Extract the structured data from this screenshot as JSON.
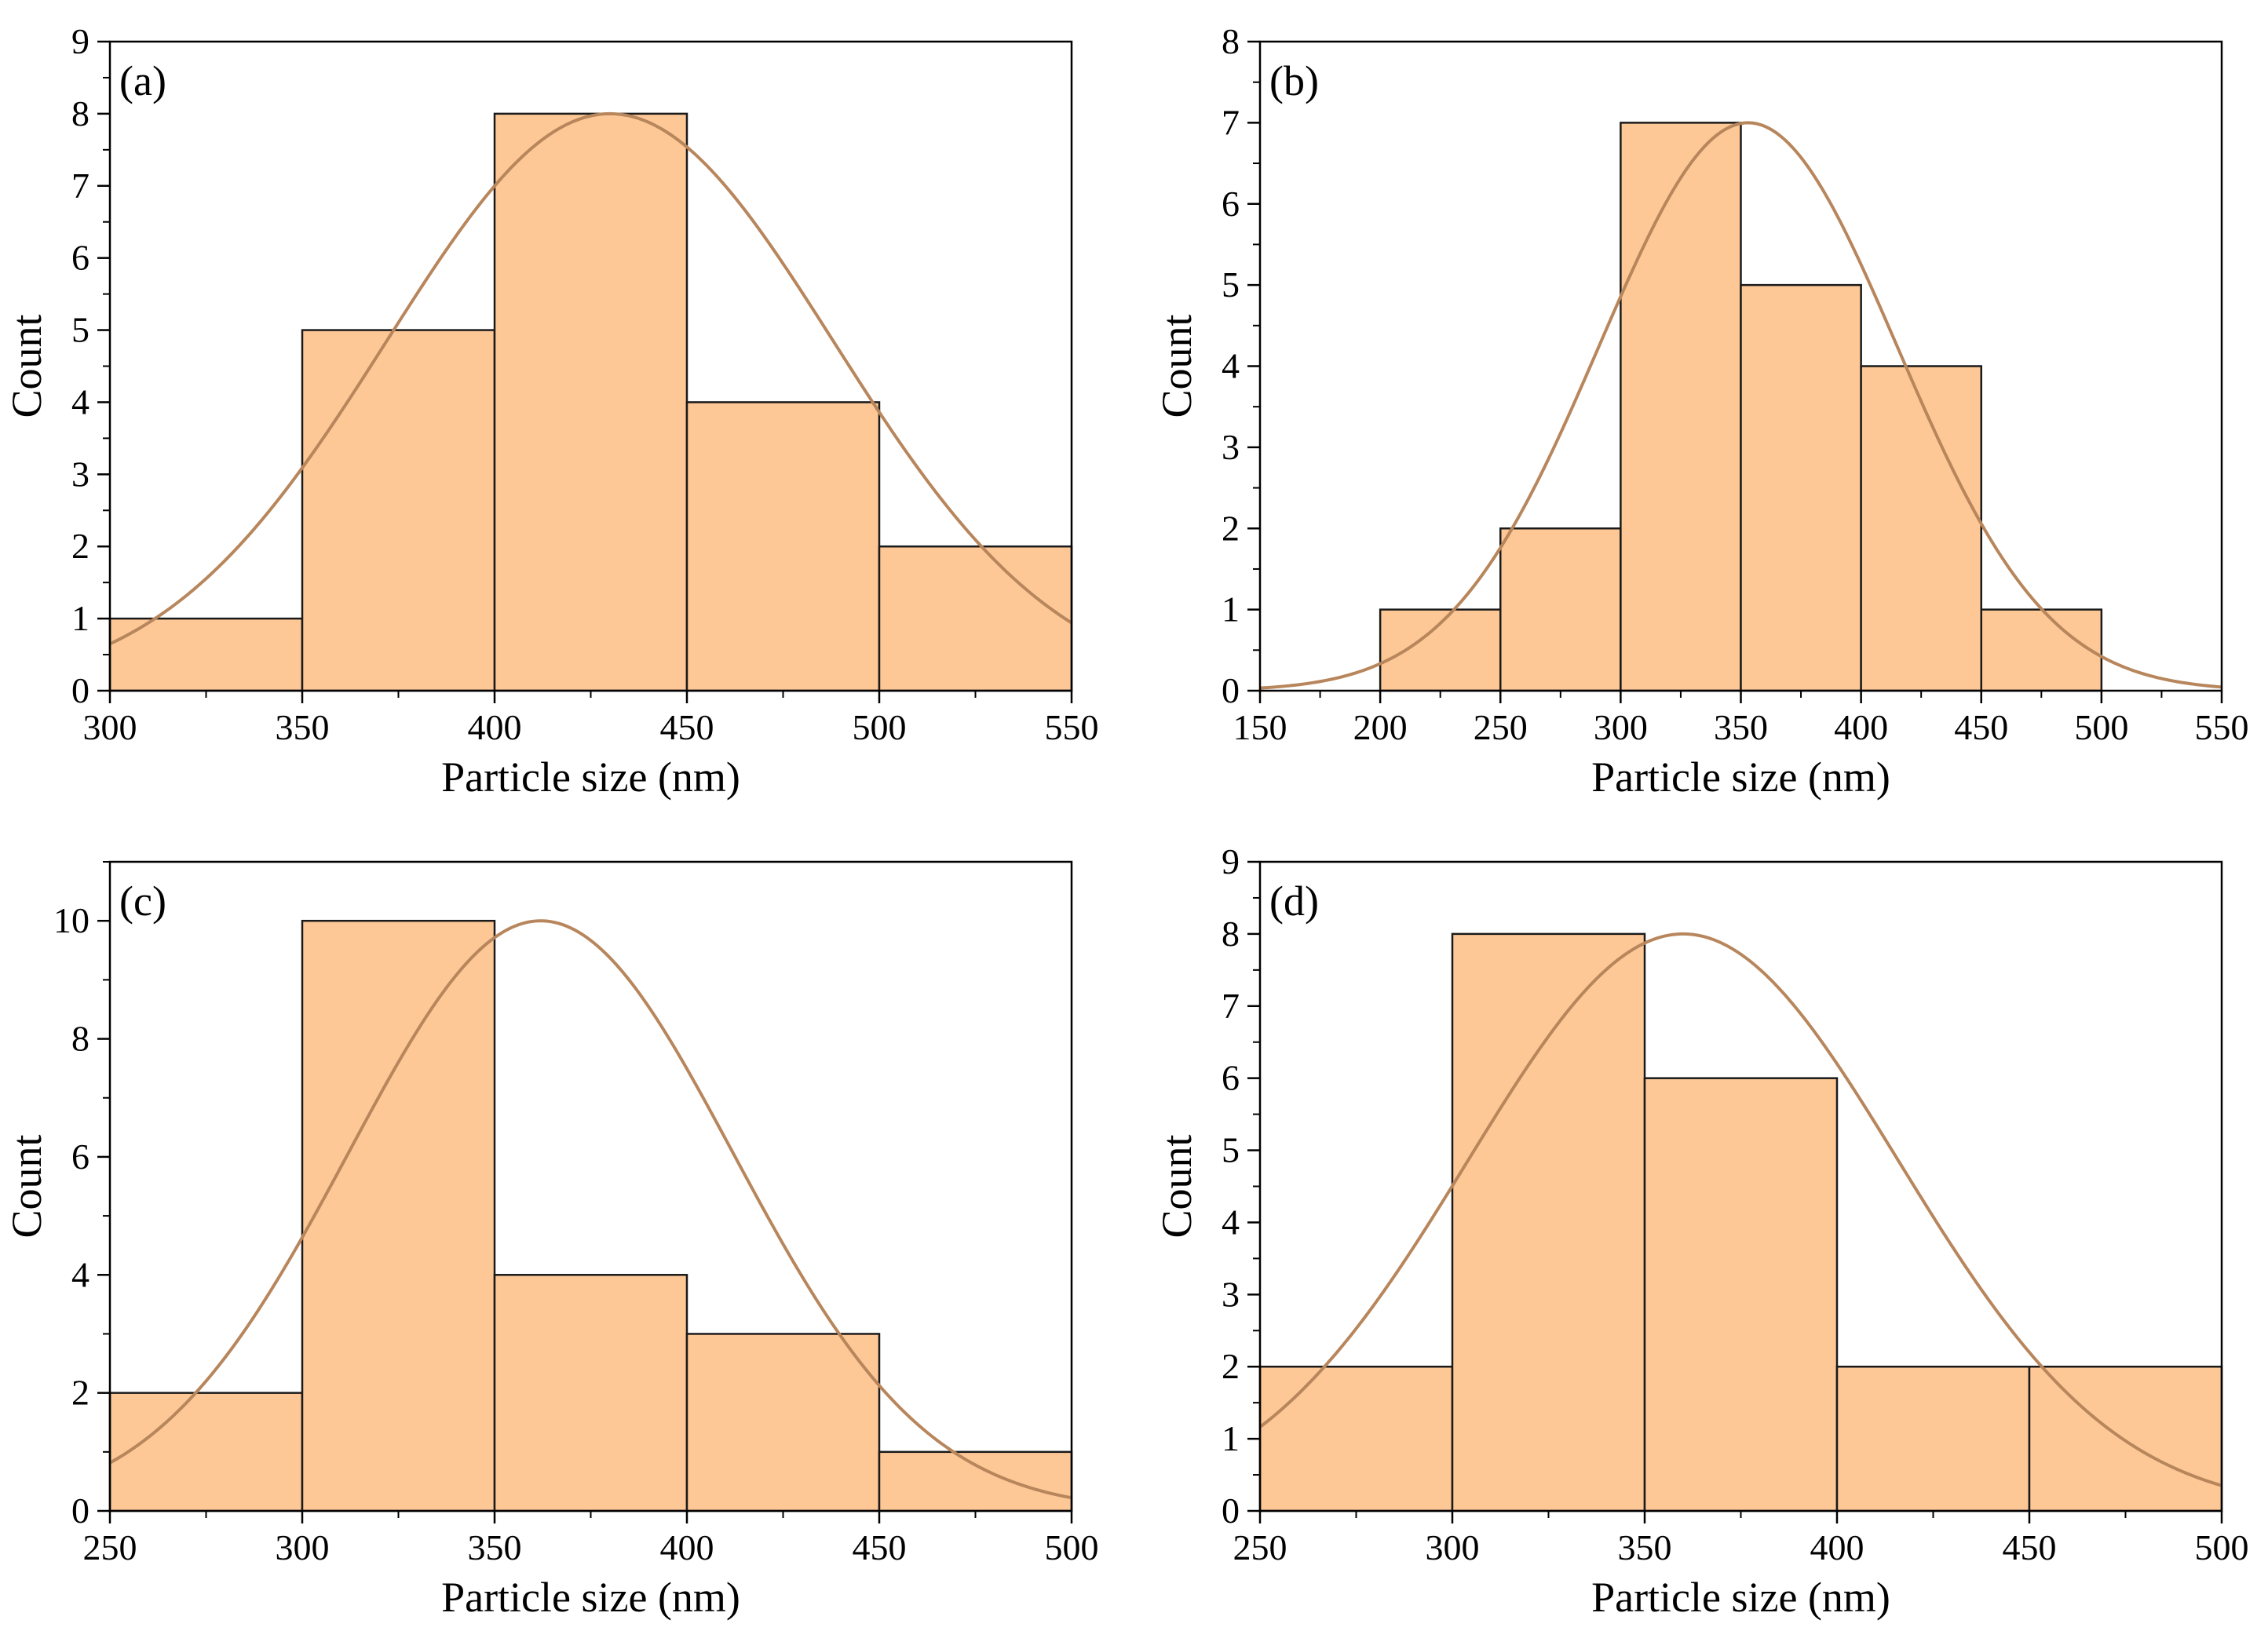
{
  "chart_data": [
    {
      "panel": "(a)",
      "type": "bar",
      "xlabel": "Particle size (nm)",
      "ylabel": "Count",
      "xlim": [
        300,
        550
      ],
      "ylim": [
        0,
        9
      ],
      "xticks": [
        300,
        350,
        400,
        450,
        500,
        550
      ],
      "yticks": [
        0,
        1,
        2,
        3,
        4,
        5,
        6,
        7,
        8,
        9
      ],
      "bin_edges": [
        300,
        350,
        400,
        450,
        500,
        550
      ],
      "values": [
        1,
        5,
        8,
        4,
        2
      ],
      "fit": {
        "type": "gaussian",
        "mean": 430,
        "peak": 8.0,
        "sigma": 58
      }
    },
    {
      "panel": "(b)",
      "type": "bar",
      "xlabel": "Particle size (nm)",
      "ylabel": "Count",
      "xlim": [
        150,
        550
      ],
      "ylim": [
        0,
        8
      ],
      "xticks": [
        150,
        200,
        250,
        300,
        350,
        400,
        450,
        500,
        550
      ],
      "yticks": [
        0,
        1,
        2,
        3,
        4,
        5,
        6,
        7,
        8
      ],
      "bin_edges": [
        200,
        250,
        300,
        350,
        400,
        450,
        500
      ],
      "values": [
        1,
        2,
        7,
        5,
        4,
        1
      ],
      "fit": {
        "type": "gaussian",
        "mean": 353,
        "peak": 7.0,
        "sigma": 62
      }
    },
    {
      "panel": "(c)",
      "type": "bar",
      "xlabel": "Particle size (nm)",
      "ylabel": "Count",
      "xlim": [
        250,
        500
      ],
      "ylim": [
        0,
        11
      ],
      "xticks": [
        250,
        300,
        350,
        400,
        450,
        500
      ],
      "yticks": [
        0,
        2,
        4,
        6,
        8,
        10
      ],
      "bin_edges": [
        250,
        300,
        350,
        400,
        450,
        500
      ],
      "values": [
        2,
        10,
        4,
        3,
        1
      ],
      "fit": {
        "type": "gaussian",
        "mean": 362,
        "peak": 10.0,
        "sigma": 50
      }
    },
    {
      "panel": "(d)",
      "type": "bar",
      "xlabel": "Particle size (nm)",
      "ylabel": "Count",
      "xlim": [
        250,
        500
      ],
      "ylim": [
        0,
        9
      ],
      "xticks": [
        250,
        300,
        350,
        400,
        450,
        500
      ],
      "yticks": [
        0,
        1,
        2,
        3,
        4,
        5,
        6,
        7,
        8,
        9
      ],
      "bin_edges": [
        250,
        300,
        350,
        400,
        450,
        500
      ],
      "values": [
        2,
        8,
        6,
        2,
        2
      ],
      "fit": {
        "type": "gaussian",
        "mean": 360,
        "peak": 8.0,
        "sigma": 56
      }
    }
  ],
  "colors": {
    "bar_fill": "#fdc896",
    "bar_edge": "#1a1a1a",
    "fit_line": "#b8865c",
    "axis": "#000000"
  }
}
